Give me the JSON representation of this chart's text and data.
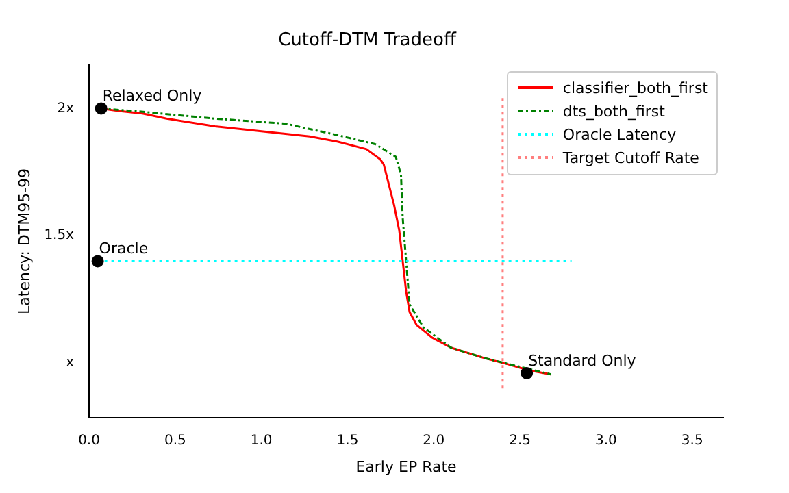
{
  "chart_data": {
    "type": "line",
    "title": "Cutoff-DTM Tradeoff",
    "xlabel": "Early EP Rate",
    "ylabel": "Latency: DTM95-99",
    "xlim": [
      0,
      3.68
    ],
    "ylim": [
      0.786,
      2.17
    ],
    "xticks": [
      {
        "value": 0,
        "label": "0.0"
      },
      {
        "value": 0.5,
        "label": "0.5"
      },
      {
        "value": 1,
        "label": "1.0"
      },
      {
        "value": 1.5,
        "label": "1.5"
      },
      {
        "value": 2,
        "label": "2.0"
      },
      {
        "value": 2.5,
        "label": "2.5"
      },
      {
        "value": 3,
        "label": "3.0"
      },
      {
        "value": 3.5,
        "label": "3.5"
      }
    ],
    "yticks": [
      {
        "value": 1,
        "label": "x"
      },
      {
        "value": 1.5,
        "label": "1.5x"
      },
      {
        "value": 2,
        "label": "2x"
      }
    ],
    "grid": false,
    "legend": "top right",
    "marker": "none",
    "series": [
      {
        "name": "classifier_both_first",
        "color": "#ff0000",
        "line_style": "solid",
        "x": [
          0.066,
          0.17,
          0.31,
          0.45,
          0.73,
          1.0,
          1.28,
          1.44,
          1.61,
          1.69,
          1.71,
          1.74,
          1.77,
          1.8,
          1.82,
          1.84,
          1.86,
          1.9,
          1.99,
          2.1,
          2.29,
          2.43,
          2.56,
          2.68
        ],
        "values": [
          2.0,
          1.99,
          1.98,
          1.96,
          1.93,
          1.91,
          1.89,
          1.87,
          1.84,
          1.8,
          1.78,
          1.7,
          1.62,
          1.52,
          1.4,
          1.28,
          1.2,
          1.15,
          1.1,
          1.06,
          1.02,
          0.995,
          0.97,
          0.955
        ]
      },
      {
        "name": "dts_both_first",
        "color": "#008000",
        "line_style": "dashed",
        "x": [
          0.066,
          0.26,
          0.73,
          1.14,
          1.41,
          1.66,
          1.78,
          1.81,
          1.82,
          1.84,
          1.86,
          1.94,
          2.1,
          2.29,
          2.68
        ],
        "values": [
          2.0,
          1.99,
          1.96,
          1.94,
          1.9,
          1.86,
          1.81,
          1.74,
          1.57,
          1.4,
          1.23,
          1.14,
          1.06,
          1.02,
          0.955
        ]
      },
      {
        "name": "Oracle Latency",
        "color": "#00ffff",
        "line_style": "dotted",
        "x": [
          0.05,
          2.8
        ],
        "values": [
          1.4,
          1.4
        ]
      },
      {
        "name": "Target Cutoff Rate",
        "color": "#ff7f7f",
        "line_style": "dotted",
        "x": [
          2.4,
          2.4
        ],
        "values": [
          0.9,
          2.05
        ]
      },
      {
        "type": "scatter",
        "color": "#000000",
        "marker": "circle",
        "x": [
          0.07,
          0.05,
          2.54
        ],
        "values": [
          2.0,
          1.4,
          0.96
        ]
      }
    ],
    "annotations": [
      {
        "text": "Relaxed Only",
        "x": 0.07,
        "y": 2.0
      },
      {
        "text": "Oracle",
        "x": 0.05,
        "y": 1.4
      },
      {
        "text": "Standard Only",
        "x": 2.54,
        "y": 0.96
      }
    ]
  }
}
